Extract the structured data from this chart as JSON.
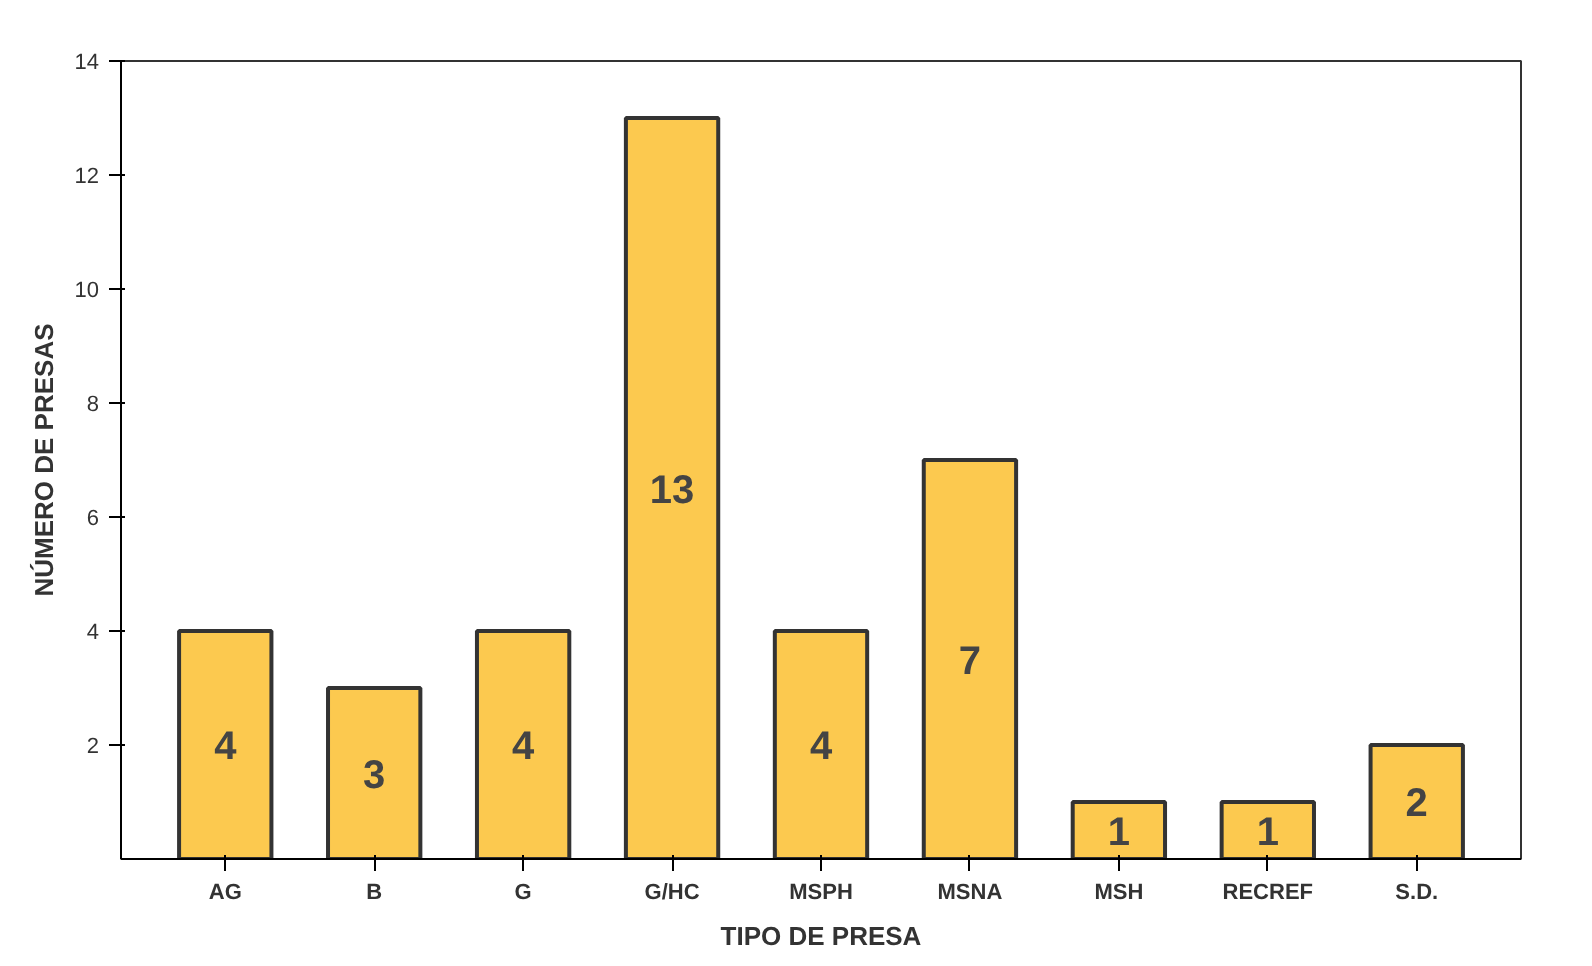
{
  "chart_data": {
    "type": "bar",
    "xlabel": "TIPO DE PRESA",
    "ylabel": "NÚMERO DE PRESAS",
    "categories": [
      "AG",
      "B",
      "G",
      "G/HC",
      "MSPH",
      "MSNA",
      "MSH",
      "RECREF",
      "S.D."
    ],
    "values": [
      4,
      3,
      4,
      13,
      4,
      7,
      1,
      1,
      2
    ],
    "color": "#fcc94f",
    "ylim": [
      0,
      14
    ],
    "yticks": [
      2,
      4,
      6,
      8,
      10,
      12,
      14
    ],
    "grid": false,
    "data_labels": true
  }
}
